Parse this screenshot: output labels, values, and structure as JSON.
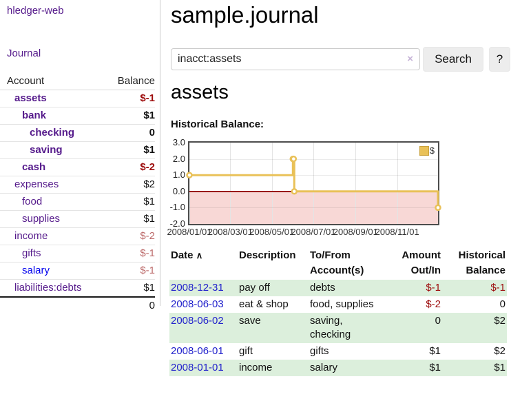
{
  "app": {
    "brand": "hledger-web"
  },
  "sidebar": {
    "nav": {
      "journal": "Journal"
    },
    "table": {
      "account_header": "Account",
      "balance_header": "Balance"
    },
    "accounts": [
      {
        "name": "assets",
        "balance": "$-1"
      },
      {
        "name": "bank",
        "balance": "$1"
      },
      {
        "name": "checking",
        "balance": "0"
      },
      {
        "name": "saving",
        "balance": "$1"
      },
      {
        "name": "cash",
        "balance": "$-2"
      },
      {
        "name": "expenses",
        "balance": "$2"
      },
      {
        "name": "food",
        "balance": "$1"
      },
      {
        "name": "supplies",
        "balance": "$1"
      },
      {
        "name": "income",
        "balance": "$-2"
      },
      {
        "name": "gifts",
        "balance": "$-1"
      },
      {
        "name": "salary",
        "balance": "$-1"
      },
      {
        "name": "liabilities:debts",
        "balance": "$1"
      }
    ],
    "total": "0"
  },
  "search": {
    "value": "inacct:assets",
    "clear_icon": "×",
    "search_button": "Search",
    "help_button": "?"
  },
  "main": {
    "title": "sample.journal",
    "account_heading": "assets",
    "chart_title": "Historical Balance:"
  },
  "chart_data": {
    "type": "line",
    "title": "Historical Balance:",
    "series": [
      {
        "name": "$",
        "step": true,
        "points": [
          [
            "2008/01/01",
            1
          ],
          [
            "2008/06/01",
            2
          ],
          [
            "2008/06/02",
            2
          ],
          [
            "2008/06/03",
            0
          ],
          [
            "2008/12/31",
            -1
          ]
        ]
      }
    ],
    "x_ticks": [
      "2008/01/01",
      "2008/03/01",
      "2008/05/01",
      "2008/07/01",
      "2008/09/01",
      "2008/11/01"
    ],
    "y_ticks": [
      3.0,
      2.0,
      1.0,
      0.0,
      -1.0,
      -2.0
    ],
    "ylim": [
      -2,
      3
    ],
    "x_range": [
      "2008/01/01",
      "2008/12/31"
    ],
    "legend": {
      "label": "$",
      "position": "top-right"
    },
    "grid": true,
    "colors": {
      "line": "#e9c158",
      "marker_fill": "#ffffff",
      "negative_region": "#f8d8d6",
      "zero_line": "#990000",
      "grid": "#e4e4e4",
      "border": "#4d4d4d"
    }
  },
  "register": {
    "headers": {
      "date": "Date",
      "sort_arrow": "∧",
      "description": "Description",
      "accounts": "To/From Account(s)",
      "amount": "Amount Out/In",
      "balance": "Historical Balance"
    },
    "rows": [
      {
        "date": "2008-12-31",
        "description": "pay off",
        "accounts": "debts",
        "amount": "$-1",
        "balance": "$-1"
      },
      {
        "date": "2008-06-03",
        "description": "eat & shop",
        "accounts": "food, supplies",
        "amount": "$-2",
        "balance": "0"
      },
      {
        "date": "2008-06-02",
        "description": "save",
        "accounts": "saving, checking",
        "amount": "0",
        "balance": "$2"
      },
      {
        "date": "2008-06-01",
        "description": "gift",
        "accounts": "gifts",
        "amount": "$1",
        "balance": "$2"
      },
      {
        "date": "2008-01-01",
        "description": "income",
        "accounts": "salary",
        "amount": "$1",
        "balance": "$1"
      }
    ]
  }
}
